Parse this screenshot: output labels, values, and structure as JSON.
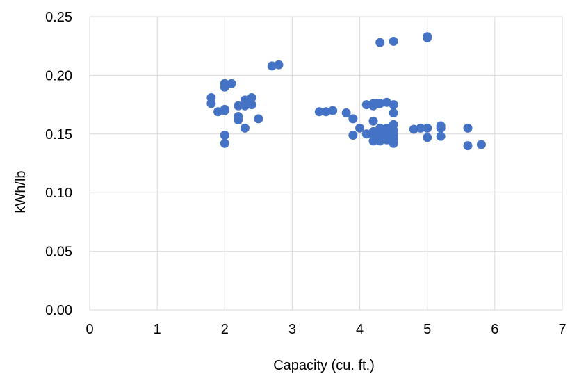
{
  "chart_data": {
    "type": "scatter",
    "xlabel": "Capacity (cu. ft.)",
    "ylabel": "kWh/lb",
    "xlim": [
      0,
      7
    ],
    "ylim": [
      0,
      0.25
    ],
    "x_ticks": [
      "0",
      "1",
      "2",
      "3",
      "4",
      "5",
      "6",
      "7"
    ],
    "y_ticks": [
      "0.00",
      "0.05",
      "0.10",
      "0.15",
      "0.20",
      "0.25"
    ],
    "grid": true,
    "marker_color": "#4472C4",
    "points": [
      [
        1.8,
        0.181
      ],
      [
        1.8,
        0.176
      ],
      [
        1.9,
        0.169
      ],
      [
        2.0,
        0.193
      ],
      [
        2.0,
        0.19
      ],
      [
        2.1,
        0.193
      ],
      [
        2.0,
        0.171
      ],
      [
        2.0,
        0.17
      ],
      [
        2.0,
        0.149
      ],
      [
        2.0,
        0.142
      ],
      [
        2.2,
        0.174
      ],
      [
        2.2,
        0.165
      ],
      [
        2.2,
        0.162
      ],
      [
        2.3,
        0.179
      ],
      [
        2.3,
        0.174
      ],
      [
        2.35,
        0.177
      ],
      [
        2.4,
        0.181
      ],
      [
        2.4,
        0.175
      ],
      [
        2.3,
        0.155
      ],
      [
        2.5,
        0.163
      ],
      [
        2.7,
        0.208
      ],
      [
        2.8,
        0.209
      ],
      [
        3.4,
        0.169
      ],
      [
        3.5,
        0.169
      ],
      [
        3.6,
        0.17
      ],
      [
        3.8,
        0.168
      ],
      [
        3.9,
        0.163
      ],
      [
        3.9,
        0.149
      ],
      [
        4.0,
        0.155
      ],
      [
        4.1,
        0.175
      ],
      [
        4.1,
        0.15
      ],
      [
        4.2,
        0.176
      ],
      [
        4.2,
        0.174
      ],
      [
        4.25,
        0.176
      ],
      [
        4.3,
        0.176
      ],
      [
        4.4,
        0.177
      ],
      [
        4.5,
        0.175
      ],
      [
        4.5,
        0.168
      ],
      [
        4.2,
        0.161
      ],
      [
        4.3,
        0.155
      ],
      [
        4.4,
        0.155
      ],
      [
        4.5,
        0.158
      ],
      [
        4.2,
        0.152
      ],
      [
        4.3,
        0.151
      ],
      [
        4.4,
        0.152
      ],
      [
        4.5,
        0.153
      ],
      [
        4.2,
        0.149
      ],
      [
        4.3,
        0.148
      ],
      [
        4.4,
        0.148
      ],
      [
        4.5,
        0.149
      ],
      [
        4.2,
        0.144
      ],
      [
        4.3,
        0.144
      ],
      [
        4.4,
        0.145
      ],
      [
        4.5,
        0.146
      ],
      [
        4.5,
        0.142
      ],
      [
        4.3,
        0.228
      ],
      [
        4.5,
        0.229
      ],
      [
        5.0,
        0.233
      ],
      [
        5.0,
        0.232
      ],
      [
        4.8,
        0.154
      ],
      [
        4.9,
        0.155
      ],
      [
        5.0,
        0.155
      ],
      [
        5.2,
        0.157
      ],
      [
        5.2,
        0.155
      ],
      [
        5.0,
        0.147
      ],
      [
        5.2,
        0.148
      ],
      [
        5.6,
        0.155
      ],
      [
        5.6,
        0.14
      ],
      [
        5.8,
        0.141
      ]
    ]
  }
}
